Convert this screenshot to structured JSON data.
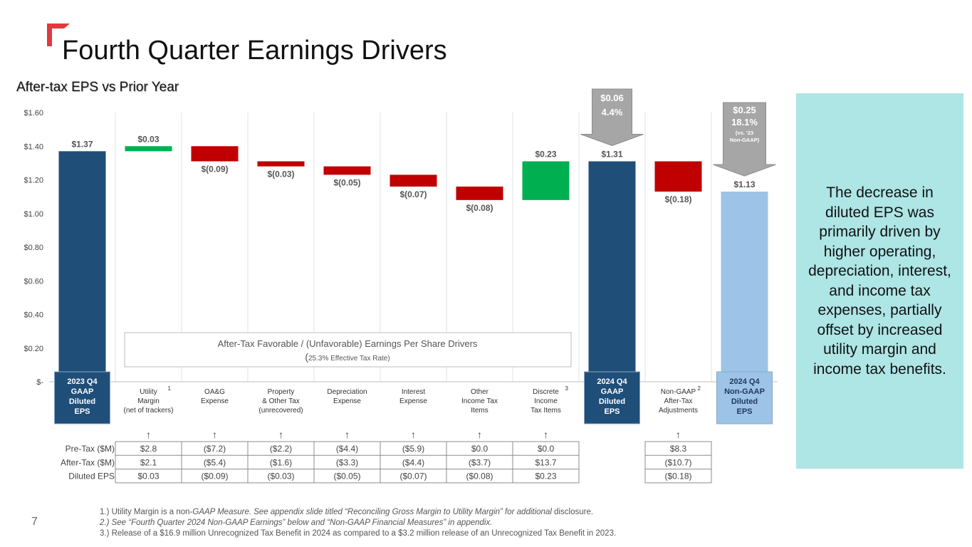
{
  "page": {
    "title": "Fourth Quarter Earnings Drivers",
    "subtitle": "After-tax EPS vs Prior Year",
    "page_number": "7",
    "callout": "The decrease in diluted EPS was primarily driven by higher operating, depreciation, interest, and income tax expenses, partially offset by increased utility margin and income tax benefits.",
    "footnotes": {
      "n1_a": "1.) Utility Margin is a non-",
      "n1_b": "GAAP Measure. See appendix slide titled “Reconciling Gross Margin to Utility Margin” for additional",
      "n1_c": " disclosure.",
      "n2": "2.) See “Fourth Quarter 2024 Non-GAAP Earnings” below and “Non-GAAP Financial Measures” in appendix.",
      "n3": "3.) Release of a $16.9 million Unrecognized Tax Benefit in 2024 as compared to a $3.2 million release of an Unrecognized Tax Benefit in 2023."
    }
  },
  "chart_data": {
    "type": "bar",
    "subtype": "waterfall",
    "ylim": [
      0,
      1.6
    ],
    "y_ticks": [
      {
        "value": 0,
        "label": "$-"
      },
      {
        "value": 0.2,
        "label": "$0.20"
      },
      {
        "value": 0.4,
        "label": "$0.40"
      },
      {
        "value": 0.6,
        "label": "$0.60"
      },
      {
        "value": 0.8,
        "label": "$0.80"
      },
      {
        "value": 1.0,
        "label": "$1.00"
      },
      {
        "value": 1.2,
        "label": "$1.20"
      },
      {
        "value": 1.4,
        "label": "$1.40"
      },
      {
        "value": 1.6,
        "label": "$1.60"
      }
    ],
    "grid": "vertical category separators",
    "colors": {
      "total": "#1f4e79",
      "increase": "#00b050",
      "decrease": "#c00000",
      "non_gaap_total": "#9dc3e6",
      "arrow": "#a6a6a6"
    },
    "bars": [
      {
        "category": [
          "2023 Q4",
          "GAAP",
          "Diluted",
          "EPS"
        ],
        "kind": "total",
        "value": 1.37,
        "label": "$1.37",
        "boxed": true
      },
      {
        "category": [
          "Utility",
          "Margin",
          "(net of trackers)"
        ],
        "footnote": "1",
        "kind": "increase",
        "start": 1.37,
        "end": 1.4,
        "label": "$0.03"
      },
      {
        "category": [
          "OA&G",
          "Expense"
        ],
        "kind": "decrease",
        "start": 1.4,
        "end": 1.31,
        "label": "$(0.09)"
      },
      {
        "category": [
          "Property",
          "& Other Tax",
          "(unrecovered)"
        ],
        "kind": "decrease",
        "start": 1.31,
        "end": 1.28,
        "label": "$(0.03)"
      },
      {
        "category": [
          "Depreciation",
          "Expense"
        ],
        "kind": "decrease",
        "start": 1.28,
        "end": 1.23,
        "label": "$(0.05)"
      },
      {
        "category": [
          "Interest",
          "Expense"
        ],
        "kind": "decrease",
        "start": 1.23,
        "end": 1.16,
        "label": "$(0.07)"
      },
      {
        "category": [
          "Other",
          "Income Tax",
          "Items"
        ],
        "kind": "decrease",
        "start": 1.16,
        "end": 1.08,
        "label": "$(0.08)"
      },
      {
        "category": [
          "Discrete",
          "Income",
          "Tax Items"
        ],
        "footnote": "3",
        "kind": "increase",
        "start": 1.08,
        "end": 1.31,
        "label": "$0.23"
      },
      {
        "category": [
          "2024 Q4",
          "GAAP",
          "Diluted",
          "EPS"
        ],
        "kind": "total",
        "value": 1.31,
        "label": "$1.31",
        "boxed": true
      },
      {
        "category": [
          "Non-GAAP",
          "After-Tax",
          "Adjustments"
        ],
        "footnote": "2",
        "kind": "decrease",
        "start": 1.31,
        "end": 1.13,
        "label": "$(0.18)"
      },
      {
        "category": [
          "2024 Q4",
          "Non-GAAP",
          "Diluted",
          "EPS"
        ],
        "kind": "non_gaap_total",
        "value": 1.13,
        "label": "$1.13",
        "boxed": true
      }
    ],
    "arrows": [
      {
        "over_bar": 8,
        "lines": [
          "$0.06",
          "4.4%"
        ]
      },
      {
        "over_bar": 10,
        "lines": [
          "$0.25",
          "18.1%",
          "(vs. '23",
          "Non-GAAP)"
        ]
      }
    ],
    "annotation": {
      "line1": "After-Tax Favorable / (Unfavorable) Earnings Per Share Drivers",
      "line2_paren": "(",
      "line2_rest": "25.3% Effective Tax Rate)"
    },
    "table": {
      "arrow_glyph": "↑",
      "arrow_columns": [
        1,
        2,
        3,
        4,
        5,
        6,
        7,
        9
      ],
      "row_headers": [
        "Pre-Tax ($M)",
        "After-Tax ($M)",
        "Diluted EPS"
      ],
      "columns": [
        {
          "bar": 1,
          "values": [
            "$2.8",
            "$2.1",
            "$0.03"
          ]
        },
        {
          "bar": 2,
          "values": [
            "($7.2)",
            "($5.4)",
            "($0.09)"
          ]
        },
        {
          "bar": 3,
          "values": [
            "($2.2)",
            "($1.6)",
            "($0.03)"
          ]
        },
        {
          "bar": 4,
          "values": [
            "($4.4)",
            "($3.3)",
            "($0.05)"
          ]
        },
        {
          "bar": 5,
          "values": [
            "($5.9)",
            "($4.4)",
            "($0.07)"
          ]
        },
        {
          "bar": 6,
          "values": [
            "$0.0",
            "($3.7)",
            "($0.08)"
          ]
        },
        {
          "bar": 7,
          "values": [
            "$0.0",
            "$13.7",
            "$0.23"
          ]
        },
        {
          "bar": 9,
          "values": [
            "$8.3",
            "($10.7)",
            "($0.18)"
          ]
        }
      ]
    }
  }
}
